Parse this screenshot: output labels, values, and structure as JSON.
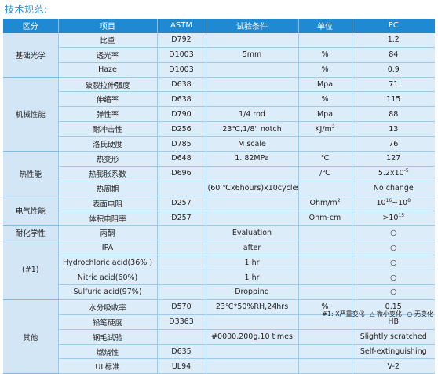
{
  "title": "技术规范:",
  "headers": [
    "区分",
    "项目",
    "ASTM",
    "试验条件",
    "单位",
    "PC"
  ],
  "groups": {
    "basic_optics": "基础光学",
    "mechanical": "机械性能",
    "thermal": "热性能",
    "electrical": "电气性能",
    "chemical": "耐化学性",
    "chemical_note": "(#1)",
    "other": "其他"
  },
  "rows": [
    {
      "item": "比重",
      "astm": "D792",
      "condition": "",
      "unit": "",
      "value": "1.2"
    },
    {
      "item": "透光率",
      "astm": "D1003",
      "condition": "5mm",
      "unit": "%",
      "value": "84"
    },
    {
      "item": "Haze",
      "astm": "D1003",
      "condition": "",
      "unit": "%",
      "value": "0.9"
    },
    {
      "item": "破裂拉伸强度",
      "astm": "D638",
      "condition": "",
      "unit": "Mpa",
      "value": "71"
    },
    {
      "item": "伸缩率",
      "astm": "D638",
      "condition": "",
      "unit": "%",
      "value": "115"
    },
    {
      "item": "弹性率",
      "astm": "D790",
      "condition": "1/4 rod",
      "unit": "Mpa",
      "value": "88"
    },
    {
      "item": "耐冲击性",
      "astm": "D256",
      "condition": "23℃,1/8\" notch",
      "unit": "KJ/m",
      "unit_sup": "2",
      "value": "13"
    },
    {
      "item": "洛氏硬度",
      "astm": "D785",
      "condition": "M scale",
      "unit": "",
      "value": "76"
    },
    {
      "item": "热变形",
      "astm": "D648",
      "condition": "1. 82MPa",
      "unit": "℃",
      "value": "127"
    },
    {
      "item": "热膨胀系数",
      "astm": "D696",
      "condition": "",
      "unit": "/℃",
      "value": "5.2x10",
      "value_sup": "-5"
    },
    {
      "item": "热周期",
      "astm": "",
      "condition": "(60 ℃x6hours)x10cycles",
      "unit": "",
      "value": "No change"
    },
    {
      "item": "表面电阻",
      "astm": "D257",
      "condition": "",
      "unit": "Ohm/m",
      "unit_sup": "2",
      "value": "10",
      "value_sup": "16",
      "value_mid": "~10",
      "value_sup2": "8"
    },
    {
      "item": "体积电阻率",
      "astm": "D257",
      "condition": "",
      "unit": "Ohm-cm",
      "value": ">10",
      "value_sup": "15"
    },
    {
      "item": "丙酮",
      "astm": "",
      "condition": "Evaluation",
      "unit": "",
      "value": "○"
    },
    {
      "item": "IPA",
      "astm": "",
      "condition": "after",
      "unit": "",
      "value": "○"
    },
    {
      "item": "Hydrochloric acid(36% )",
      "astm": "",
      "condition": "1 hr",
      "unit": "",
      "value": "○"
    },
    {
      "item": "Nitric acid(60%)",
      "astm": "",
      "condition": "1 hr",
      "unit": "",
      "value": "○"
    },
    {
      "item": "Sulfuric acid(97%)",
      "astm": "",
      "condition": "Dropping",
      "unit": "",
      "value": "○"
    },
    {
      "item": "水分吸收率",
      "astm": "D570",
      "condition": "23℃*50%RH,24hrs",
      "unit": "%",
      "value": "0.15"
    },
    {
      "item": "铅笔硬度",
      "astm": "D3363",
      "condition": "",
      "unit": "",
      "value": "HB"
    },
    {
      "item": "钢毛试验",
      "astm": "",
      "condition": "#0000,200g,10 times",
      "unit": "",
      "value": "Slightly scratched"
    },
    {
      "item": "燃烧性",
      "astm": "D635",
      "condition": "",
      "unit": "",
      "value": "Self-extinguishing"
    },
    {
      "item": "UL标准",
      "astm": "UL94",
      "condition": "",
      "unit": "",
      "value": "V-2"
    }
  ],
  "footnote": {
    "label": "#1: X严重变化",
    "mid": "△ 微小变化",
    "none": "○ 无变化"
  }
}
